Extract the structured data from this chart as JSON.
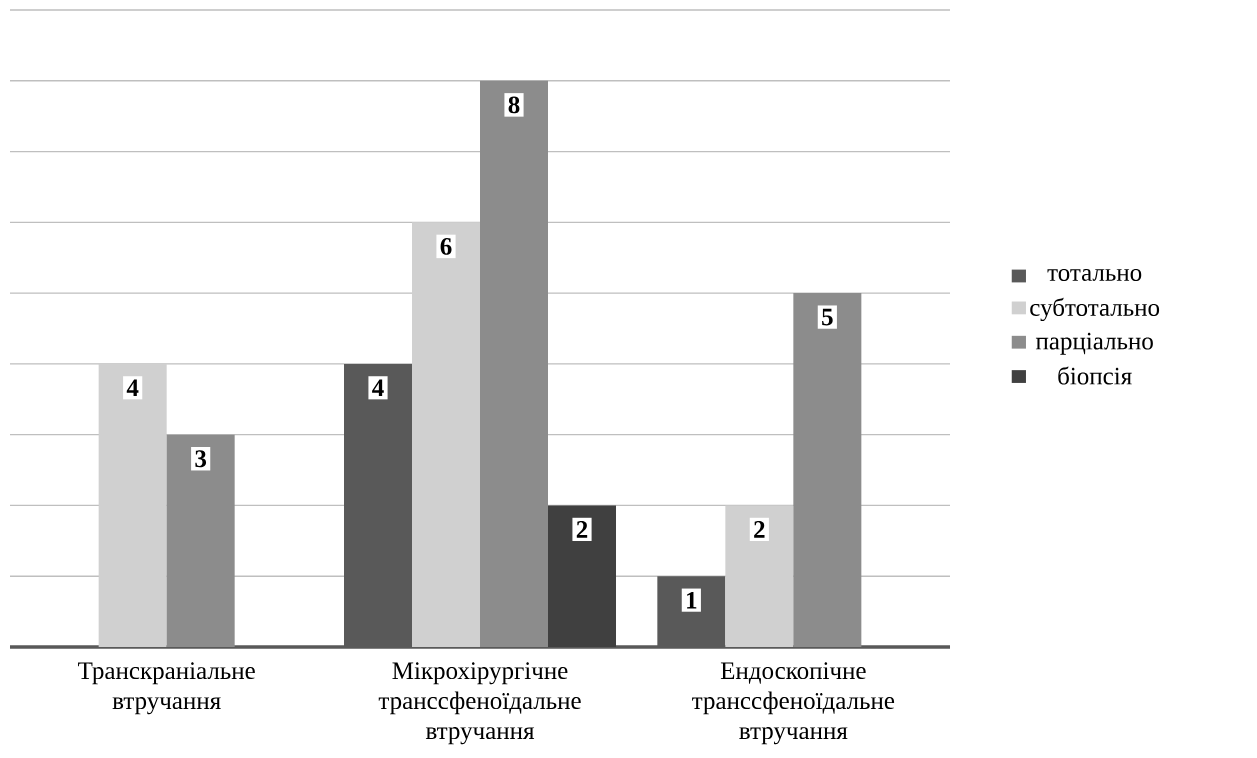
{
  "chart_data": {
    "type": "bar",
    "categories": [
      "Транскраніальне втручання",
      "Мікрохірургічне транссфеноїдальне втручання",
      "Ендоскопічне транссфеноїдальне втручання"
    ],
    "series": [
      {
        "name": "тотально",
        "color": "#595959",
        "values": [
          null,
          4,
          1
        ]
      },
      {
        "name": "субтотально",
        "color": "#d0d0d0",
        "values": [
          4,
          6,
          2
        ]
      },
      {
        "name": "парціально",
        "color": "#8c8c8c",
        "values": [
          3,
          8,
          5
        ]
      },
      {
        "name": "біопсія",
        "color": "#404040",
        "values": [
          null,
          2,
          null
        ]
      }
    ],
    "ylim": [
      0,
      9
    ],
    "yticks": [
      {
        "value": 0,
        "label": null
      },
      {
        "value": 1,
        "label": null
      },
      {
        "value": 2,
        "label": null
      },
      {
        "value": 3,
        "label": null
      },
      {
        "value": 4,
        "label": null
      },
      {
        "value": 5,
        "label": null
      },
      {
        "value": 6,
        "label": null
      },
      {
        "value": 7,
        "label": null
      },
      {
        "value": 8,
        "label": null
      },
      {
        "value": 9,
        "label": null
      }
    ],
    "tick_labels": "x",
    "grid": "y",
    "legend": "right",
    "data_labels": true
  }
}
